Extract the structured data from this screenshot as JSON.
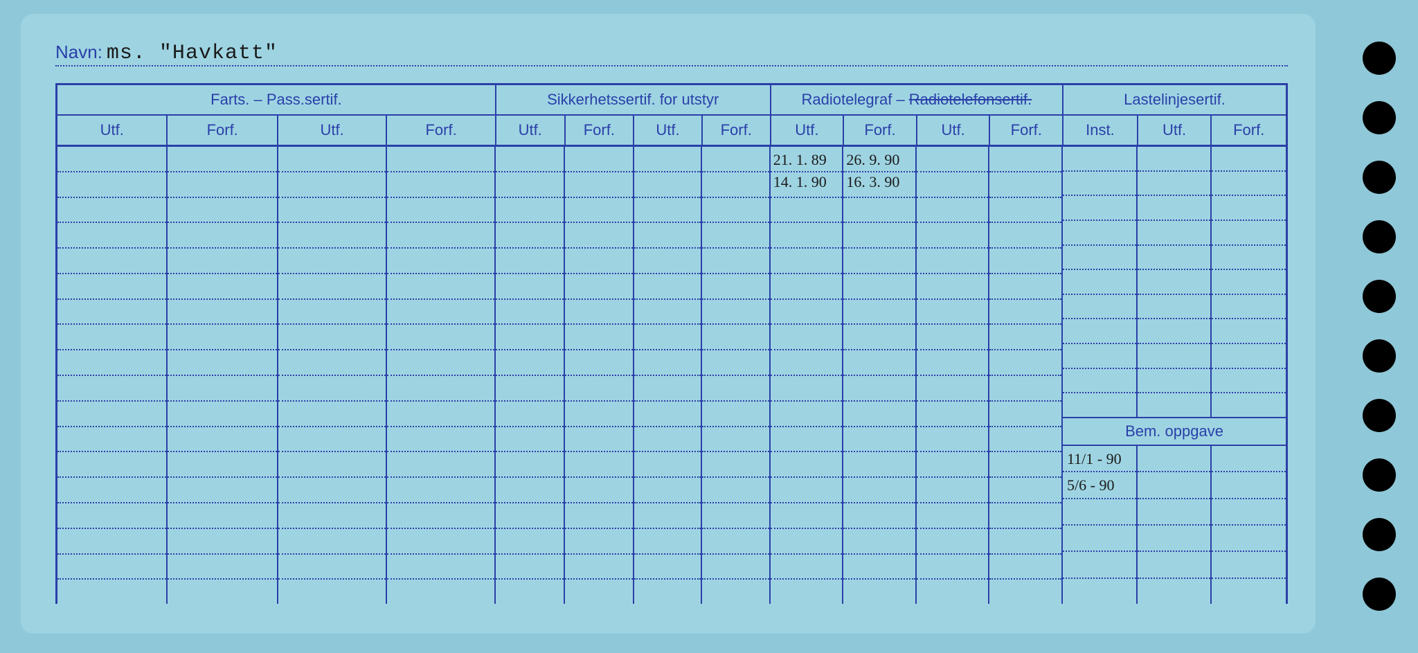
{
  "card": {
    "background_color": "#9ed4e2",
    "line_color": "#2a3fa8",
    "dot_color": "#2a3fa8",
    "hole_color": "#000000",
    "hole_count": 10
  },
  "navn": {
    "label": "Navn:",
    "value": "ms. \"Havkatt\""
  },
  "groups": {
    "farts": "Farts. – Pass.sertif.",
    "sikkerhet": "Sikkerhetssertif. for utstyr",
    "radio_prefix": "Radiotelegraf – ",
    "radio_struck": "Radiotelefonsertif.",
    "lastelinje": "Lastelinjesertif."
  },
  "subheads": {
    "utf": "Utf.",
    "forf": "Forf.",
    "inst": "Inst."
  },
  "bem_oppgave_label": "Bem. oppgave",
  "radio_entries": {
    "utf_row1": "21. 1. 89",
    "forf_row1": "26. 9. 90",
    "utf_row2": "14. 1. 90",
    "forf_row2": "16. 3. 90"
  },
  "bem_entries": {
    "row1": "11/1 - 90",
    "row2": "5/6 - 90"
  },
  "row_count": 18,
  "split_top_rows": 11,
  "split_bot_rows": 6
}
